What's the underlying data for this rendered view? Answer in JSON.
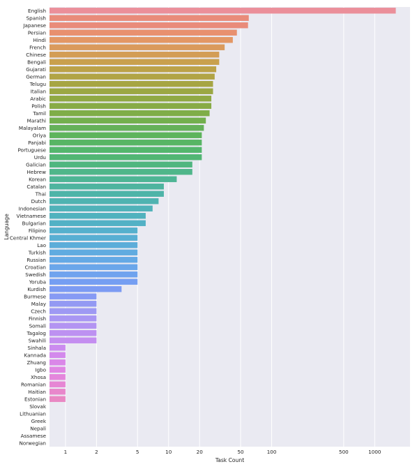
{
  "chart_data": {
    "type": "bar",
    "orientation": "horizontal",
    "xscale": "log",
    "xlabel": "Task Count",
    "ylabel": "Language",
    "xlim": [
      0.7,
      2200
    ],
    "grid": true,
    "xticks": [
      1,
      2,
      5,
      10,
      20,
      50,
      100,
      500,
      1000
    ],
    "categories": [
      "English",
      "Spanish",
      "Japanese",
      "Persian",
      "Hindi",
      "French",
      "Chinese",
      "Bengali",
      "Gujarati",
      "German",
      "Telugu",
      "Italian",
      "Arabic",
      "Polish",
      "Tamil",
      "Marathi",
      "Malayalam",
      "Oriya",
      "Panjabi",
      "Portuguese",
      "Urdu",
      "Galician",
      "Hebrew",
      "Korean",
      "Catalan",
      "Thai",
      "Dutch",
      "Indonesian",
      "Vietnamese",
      "Bulgarian",
      "Filipino",
      "Central Khmer",
      "Lao",
      "Turkish",
      "Russian",
      "Croatian",
      "Swedish",
      "Yoruba",
      "Kurdish",
      "Burmese",
      "Malay",
      "Czech",
      "Finnish",
      "Somali",
      "Tagalog",
      "Swahili",
      "Sinhala",
      "Kannada",
      "Zhuang",
      "Igbo",
      "Xhosa",
      "Romanian",
      "Haitian",
      "Estonian",
      "Slovak",
      "Lithuanian",
      "Greek",
      "Nepali",
      "Assamese",
      "Norwegian"
    ],
    "values": [
      1600,
      60,
      59,
      46,
      42,
      35,
      31,
      31,
      29,
      28,
      27,
      27,
      26,
      26,
      25,
      23,
      22,
      21,
      21,
      21,
      21,
      17,
      17,
      12,
      9,
      9,
      8,
      7,
      6,
      6,
      5,
      5,
      5,
      5,
      5,
      5,
      5,
      5,
      3.5,
      2,
      2,
      2,
      2,
      2,
      2,
      2,
      1,
      1,
      1,
      1,
      1,
      1,
      1,
      1,
      0,
      0,
      0,
      0,
      0,
      0
    ],
    "bar_colors": [
      "#eb8f9a",
      "#e98b7a",
      "#e98b7a",
      "#e8906f",
      "#e39765",
      "#da9a5c",
      "#d39d55",
      "#c9a04d",
      "#bca248",
      "#b1a445",
      "#a6a543",
      "#9ba743",
      "#90a944",
      "#88ab46",
      "#7fad48",
      "#73af4e",
      "#65b15a",
      "#5db45c",
      "#57b564",
      "#54b66d",
      "#52b674",
      "#50b67f",
      "#4fb68a",
      "#4eb595",
      "#4eb49f",
      "#4eb4a8",
      "#4fb3b1",
      "#50b2b9",
      "#50b2be",
      "#52b1c5",
      "#55b0cd",
      "#58afd3",
      "#5cadd9",
      "#60abe0",
      "#64a9e5",
      "#6aa6ea",
      "#6fa3ee",
      "#759ef2",
      "#7c9bf3",
      "#869af4",
      "#9399f3",
      "#9e99f3",
      "#a996f3",
      "#b394f2",
      "#bd91f1",
      "#c48ef0",
      "#cb8bef",
      "#d389ec",
      "#da87e8",
      "#e086e3",
      "#e486dc",
      "#e686d4",
      "#e887cb",
      "#e988c3",
      "#ea89bb",
      "#ea8ab2",
      "#ea8bab",
      "#eb8da3",
      "#eb8e9d",
      "#eb8f98"
    ]
  }
}
